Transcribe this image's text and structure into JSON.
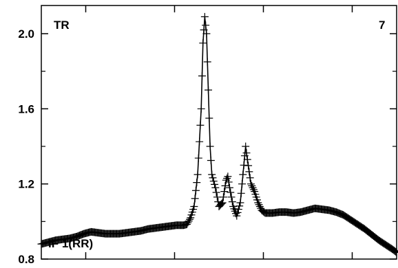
{
  "chart_data": {
    "type": "line",
    "title": "",
    "xlabel": "",
    "ylabel": "",
    "ylim": [
      0.8,
      2.15
    ],
    "xlim": [
      0,
      100
    ],
    "grid": false,
    "yticks": [
      0.8,
      1.2,
      1.6,
      2.0
    ],
    "ytick_labels": [
      "0.8",
      "1.2",
      "1.6",
      "2.0"
    ],
    "xticks_minor": [
      12.5,
      37.5,
      62.5,
      87.5
    ],
    "annotations": {
      "top_left": "TR",
      "top_right": "7",
      "bottom_left": "IF 1(RR)"
    },
    "marker": "plus",
    "color": "#000000",
    "series": [
      {
        "points": [
          [
            0,
            0.88
          ],
          [
            2,
            0.89
          ],
          [
            4,
            0.9
          ],
          [
            6,
            0.905
          ],
          [
            8,
            0.91
          ],
          [
            10,
            0.92
          ],
          [
            12,
            0.935
          ],
          [
            14,
            0.945
          ],
          [
            16,
            0.94
          ],
          [
            18,
            0.935
          ],
          [
            20,
            0.935
          ],
          [
            22,
            0.935
          ],
          [
            24,
            0.94
          ],
          [
            26,
            0.945
          ],
          [
            28,
            0.95
          ],
          [
            30,
            0.96
          ],
          [
            32,
            0.965
          ],
          [
            34,
            0.97
          ],
          [
            36,
            0.975
          ],
          [
            38,
            0.98
          ],
          [
            40,
            0.98
          ],
          [
            41,
            0.985
          ],
          [
            42,
            1.02
          ],
          [
            43,
            1.08
          ],
          [
            44,
            1.25
          ],
          [
            45,
            1.6
          ],
          [
            45.5,
            1.95
          ],
          [
            46,
            2.09
          ],
          [
            46.5,
            2.0
          ],
          [
            47,
            1.7
          ],
          [
            47.5,
            1.4
          ],
          [
            48,
            1.25
          ],
          [
            49,
            1.18
          ],
          [
            50,
            1.08
          ],
          [
            51,
            1.1
          ],
          [
            52,
            1.22
          ],
          [
            52.5,
            1.24
          ],
          [
            53,
            1.18
          ],
          [
            54,
            1.08
          ],
          [
            55,
            1.03
          ],
          [
            56,
            1.1
          ],
          [
            57,
            1.3
          ],
          [
            57.5,
            1.4
          ],
          [
            58,
            1.33
          ],
          [
            59,
            1.2
          ],
          [
            60,
            1.16
          ],
          [
            61,
            1.1
          ],
          [
            62,
            1.06
          ],
          [
            63,
            1.045
          ],
          [
            65,
            1.045
          ],
          [
            67,
            1.05
          ],
          [
            69,
            1.05
          ],
          [
            71,
            1.045
          ],
          [
            73,
            1.05
          ],
          [
            75,
            1.06
          ],
          [
            77,
            1.07
          ],
          [
            79,
            1.065
          ],
          [
            81,
            1.06
          ],
          [
            83,
            1.05
          ],
          [
            85,
            1.035
          ],
          [
            87,
            1.01
          ],
          [
            89,
            0.985
          ],
          [
            91,
            0.96
          ],
          [
            93,
            0.93
          ],
          [
            95,
            0.9
          ],
          [
            97,
            0.875
          ],
          [
            99,
            0.85
          ],
          [
            100,
            0.835
          ]
        ]
      }
    ]
  }
}
